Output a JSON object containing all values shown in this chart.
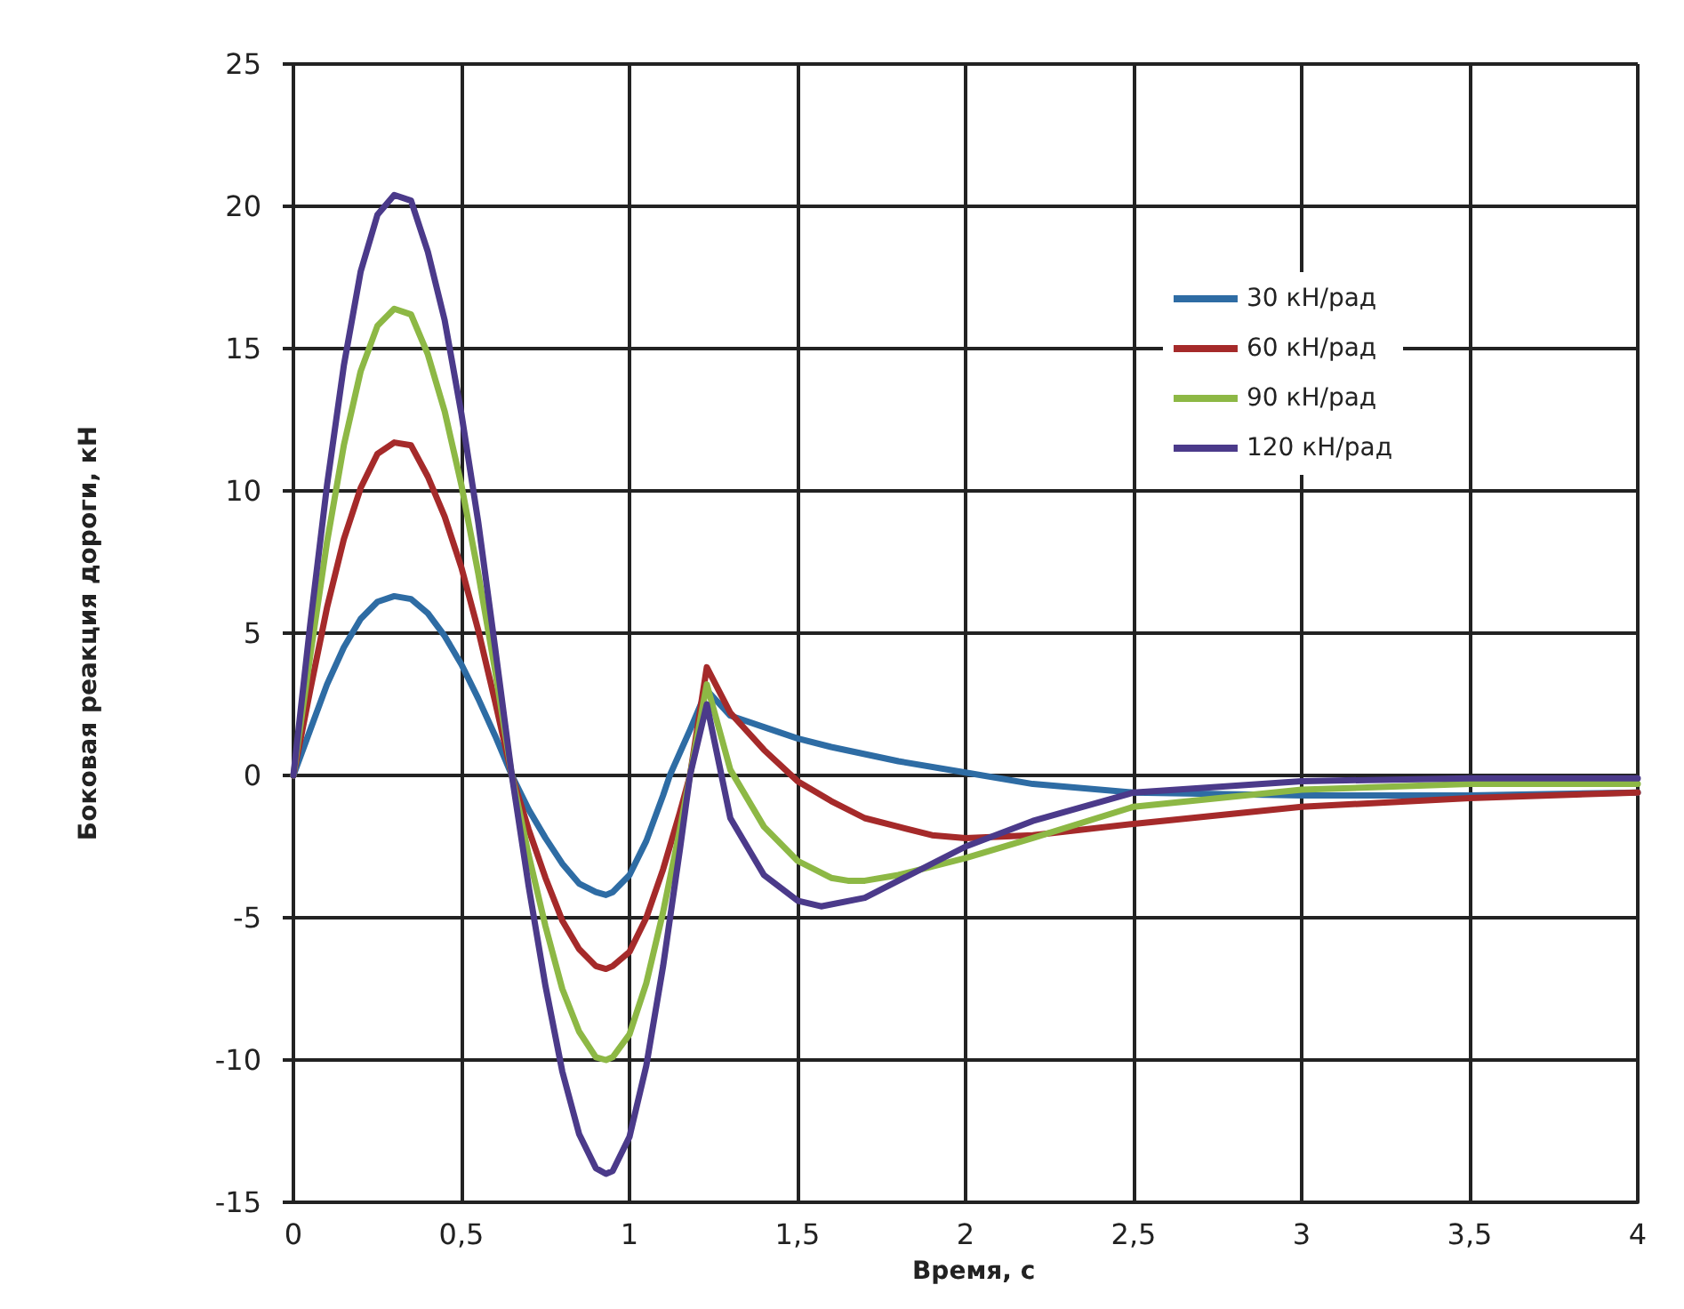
{
  "chart_data": {
    "type": "line",
    "xlabel": "Время, с",
    "ylabel": "Боковая реакция дороги, кН",
    "xlim": [
      0,
      4
    ],
    "xticks": [
      0,
      {
        "value": 0.5,
        "label": "0,5"
      },
      1,
      {
        "value": 1.5,
        "label": "1,5"
      },
      2,
      {
        "value": 2.5,
        "label": "2,5"
      },
      3,
      {
        "value": 3.5,
        "label": "3,5"
      },
      4
    ],
    "ylim": [
      -15,
      25
    ],
    "yticks": [
      -15,
      -10,
      -5,
      0,
      5,
      10,
      15,
      20,
      25
    ],
    "grid": true,
    "legend": "top right",
    "marker": "none",
    "line_style": "solid",
    "series": [
      {
        "name": "30 кН/рад",
        "color": "#2e6ca4",
        "x": [
          0,
          0.05,
          0.1,
          0.15,
          0.2,
          0.25,
          0.3,
          0.35,
          0.4,
          0.45,
          0.5,
          0.55,
          0.6,
          0.65,
          0.7,
          0.75,
          0.8,
          0.85,
          0.9,
          0.93,
          0.95,
          1.0,
          1.05,
          1.1,
          1.12,
          1.18,
          1.23,
          1.3,
          1.4,
          1.5,
          1.6,
          1.8,
          2.0,
          2.2,
          2.5,
          3.0,
          3.5,
          4.0
        ],
        "values": [
          0,
          1.6,
          3.2,
          4.5,
          5.5,
          6.1,
          6.3,
          6.2,
          5.7,
          4.9,
          3.9,
          2.7,
          1.4,
          0,
          -1.2,
          -2.2,
          -3.1,
          -3.8,
          -4.1,
          -4.2,
          -4.1,
          -3.5,
          -2.3,
          -0.7,
          0,
          1.6,
          3.0,
          2.1,
          1.7,
          1.3,
          1.0,
          0.5,
          0.1,
          -0.3,
          -0.6,
          -0.7,
          -0.7,
          -0.6
        ]
      },
      {
        "name": "60 кН/рад",
        "color": "#a52a2a",
        "x": [
          0,
          0.05,
          0.1,
          0.15,
          0.2,
          0.25,
          0.3,
          0.35,
          0.4,
          0.45,
          0.5,
          0.55,
          0.6,
          0.65,
          0.7,
          0.75,
          0.8,
          0.85,
          0.9,
          0.93,
          0.95,
          1.0,
          1.05,
          1.1,
          1.15,
          1.18,
          1.23,
          1.3,
          1.4,
          1.5,
          1.6,
          1.7,
          1.8,
          1.9,
          2.0,
          2.2,
          2.5,
          3.0,
          3.5,
          4.0
        ],
        "values": [
          0,
          3.0,
          5.9,
          8.3,
          10.1,
          11.3,
          11.7,
          11.6,
          10.5,
          9.1,
          7.3,
          5.1,
          2.6,
          0,
          -1.9,
          -3.6,
          -5.1,
          -6.1,
          -6.7,
          -6.8,
          -6.7,
          -6.2,
          -5.0,
          -3.3,
          -1.3,
          0,
          3.8,
          2.2,
          0.9,
          -0.2,
          -0.9,
          -1.5,
          -1.8,
          -2.1,
          -2.2,
          -2.1,
          -1.7,
          -1.1,
          -0.8,
          -0.6
        ]
      },
      {
        "name": "90 кН/рад",
        "color": "#8db845",
        "x": [
          0,
          0.05,
          0.1,
          0.15,
          0.2,
          0.25,
          0.3,
          0.35,
          0.4,
          0.45,
          0.5,
          0.55,
          0.6,
          0.65,
          0.7,
          0.75,
          0.8,
          0.85,
          0.9,
          0.93,
          0.95,
          1.0,
          1.05,
          1.1,
          1.15,
          1.18,
          1.23,
          1.3,
          1.4,
          1.5,
          1.6,
          1.65,
          1.7,
          1.8,
          2.0,
          2.2,
          2.5,
          3.0,
          3.5,
          4.0
        ],
        "values": [
          0,
          4.2,
          8.2,
          11.6,
          14.2,
          15.8,
          16.4,
          16.2,
          14.8,
          12.8,
          10.2,
          7.1,
          3.7,
          0,
          -2.8,
          -5.3,
          -7.5,
          -9.0,
          -9.9,
          -10,
          -9.9,
          -9.1,
          -7.3,
          -4.8,
          -1.9,
          0,
          3.2,
          0.2,
          -1.8,
          -3.0,
          -3.6,
          -3.7,
          -3.7,
          -3.5,
          -2.9,
          -2.2,
          -1.1,
          -0.5,
          -0.3,
          -0.3
        ]
      },
      {
        "name": "120 кН/рад",
        "color": "#4b3a8a",
        "x": [
          0,
          0.05,
          0.1,
          0.15,
          0.2,
          0.25,
          0.3,
          0.35,
          0.4,
          0.45,
          0.5,
          0.55,
          0.6,
          0.65,
          0.7,
          0.75,
          0.8,
          0.85,
          0.9,
          0.93,
          0.95,
          1.0,
          1.05,
          1.1,
          1.15,
          1.18,
          1.23,
          1.3,
          1.4,
          1.5,
          1.57,
          1.7,
          1.8,
          2.0,
          2.2,
          2.5,
          3.0,
          3.5,
          4.0
        ],
        "values": [
          0,
          5.3,
          10.2,
          14.4,
          17.7,
          19.7,
          20.4,
          20.2,
          18.4,
          16.0,
          12.7,
          8.9,
          4.5,
          0,
          -3.9,
          -7.4,
          -10.4,
          -12.6,
          -13.8,
          -14,
          -13.9,
          -12.7,
          -10.2,
          -6.7,
          -2.6,
          0,
          2.5,
          -1.5,
          -3.5,
          -4.4,
          -4.6,
          -4.3,
          -3.7,
          -2.5,
          -1.6,
          -0.6,
          -0.2,
          -0.1,
          -0.1
        ]
      }
    ]
  }
}
